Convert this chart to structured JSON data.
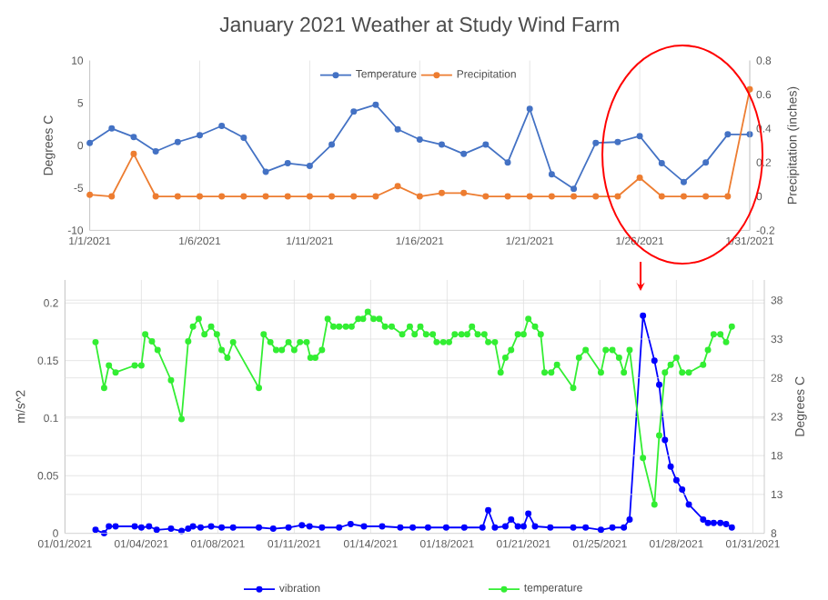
{
  "chart_data": [
    {
      "type": "line",
      "title": "January 2021 Weather at Study Wind Farm",
      "ylabel": "Degrees C",
      "y2label": "Precipitation (inches)",
      "x": [
        "2021-01-01",
        "2021-01-02",
        "2021-01-03",
        "2021-01-04",
        "2021-01-05",
        "2021-01-06",
        "2021-01-07",
        "2021-01-08",
        "2021-01-09",
        "2021-01-10",
        "2021-01-11",
        "2021-01-12",
        "2021-01-13",
        "2021-01-14",
        "2021-01-15",
        "2021-01-16",
        "2021-01-17",
        "2021-01-18",
        "2021-01-19",
        "2021-01-20",
        "2021-01-21",
        "2021-01-22",
        "2021-01-23",
        "2021-01-24",
        "2021-01-25",
        "2021-01-26",
        "2021-01-27",
        "2021-01-28",
        "2021-01-29",
        "2021-01-30",
        "2021-01-31"
      ],
      "series": [
        {
          "name": "Temperature",
          "color": "#4472c4",
          "values": [
            0.3,
            2.0,
            1.0,
            -0.7,
            0.4,
            1.2,
            2.3,
            0.9,
            -3.1,
            -2.1,
            -2.4,
            0.1,
            4.0,
            4.8,
            1.9,
            0.7,
            0.1,
            -1.0,
            0.1,
            -2.0,
            4.3,
            -3.4,
            -5.1,
            0.3,
            0.4,
            1.1,
            -2.1,
            -4.3,
            -2.0,
            1.3,
            1.3
          ]
        },
        {
          "name": "Precipitation",
          "color": "#ed7d31",
          "axis": "y2",
          "values": [
            0.01,
            0,
            0.25,
            0,
            0,
            0,
            0,
            0,
            0,
            0,
            0,
            0,
            0,
            0,
            0.06,
            0,
            0.02,
            0.02,
            0,
            0,
            0,
            0,
            0,
            0,
            0,
            0.11,
            0,
            0,
            0,
            0,
            0.63
          ]
        }
      ],
      "xlim": [
        "2021-01-01",
        "2021-01-31"
      ],
      "xticks": [
        {
          "value": "2021-01-01",
          "label": "1/1/2021"
        },
        {
          "value": "2021-01-06",
          "label": "1/6/2021"
        },
        {
          "value": "2021-01-11",
          "label": "1/11/2021"
        },
        {
          "value": "2021-01-16",
          "label": "1/16/2021"
        },
        {
          "value": "2021-01-21",
          "label": "1/21/2021"
        },
        {
          "value": "2021-01-26",
          "label": "1/26/2021"
        },
        {
          "value": "2021-01-31",
          "label": "1/31/2021"
        }
      ],
      "ylim": [
        -10,
        10
      ],
      "yticks": [
        -10,
        -5,
        0,
        5,
        10
      ],
      "y2lim": [
        -0.2,
        0.8
      ],
      "y2ticks": [
        -0.2,
        0,
        0.2,
        0.4,
        0.6,
        0.8
      ],
      "grid": "x",
      "legend": "top",
      "marker": "circle",
      "line_style": "solid"
    },
    {
      "type": "line",
      "ylabel": "m/s^2",
      "y2label": "Degrees C",
      "series": [
        {
          "name": "vibration",
          "color": "#0000ff",
          "x": [
            "2021-01-02T08:00",
            "2021-01-02T17:00",
            "2021-01-02T22:00",
            "2021-01-03T05:00",
            "2021-01-04T01:00",
            "2021-01-04T08:00",
            "2021-01-04T16:00",
            "2021-01-05T00:00",
            "2021-01-05T15:00",
            "2021-01-06T02:00",
            "2021-01-06T09:00",
            "2021-01-06T14:00",
            "2021-01-06T22:00",
            "2021-01-07T09:00",
            "2021-01-07T20:00",
            "2021-01-08T08:00",
            "2021-01-09T11:00",
            "2021-01-10T02:00",
            "2021-01-10T18:00",
            "2021-01-11T08:00",
            "2021-01-11T16:00",
            "2021-01-12T05:00",
            "2021-01-12T23:00",
            "2021-01-13T11:00",
            "2021-01-14T01:00",
            "2021-01-14T20:00",
            "2021-01-15T15:00",
            "2021-01-16T04:00",
            "2021-01-16T20:00",
            "2021-01-17T15:00",
            "2021-01-18T10:00",
            "2021-01-19T05:00",
            "2021-01-19T11:00",
            "2021-01-19T18:00",
            "2021-01-20T05:00",
            "2021-01-20T11:00",
            "2021-01-20T18:00",
            "2021-01-21T00:00",
            "2021-01-21T05:00",
            "2021-01-21T12:00",
            "2021-01-22T04:00",
            "2021-01-23T04:00",
            "2021-01-23T17:00",
            "2021-01-24T09:00",
            "2021-01-24T21:00",
            "2021-01-25T09:00",
            "2021-01-25T15:00",
            "2021-01-26T05:00",
            "2021-01-26T17:00",
            "2021-01-26T22:00",
            "2021-01-27T04:00",
            "2021-01-27T10:00",
            "2021-01-27T16:00",
            "2021-01-27T22:00",
            "2021-01-28T05:00",
            "2021-01-28T20:00",
            "2021-01-29T01:00",
            "2021-01-29T07:00",
            "2021-01-29T14:00",
            "2021-01-29T20:00",
            "2021-01-30T02:00"
          ],
          "values": [
            0.003,
            0.0,
            0.006,
            0.006,
            0.006,
            0.005,
            0.006,
            0.003,
            0.004,
            0.002,
            0.004,
            0.006,
            0.005,
            0.006,
            0.005,
            0.005,
            0.005,
            0.004,
            0.005,
            0.007,
            0.006,
            0.005,
            0.005,
            0.008,
            0.006,
            0.006,
            0.005,
            0.005,
            0.005,
            0.005,
            0.005,
            0.005,
            0.02,
            0.005,
            0.006,
            0.012,
            0.006,
            0.006,
            0.017,
            0.006,
            0.005,
            0.005,
            0.005,
            0.003,
            0.005,
            0.005,
            0.012,
            0.189,
            0.15,
            0.129,
            0.081,
            0.058,
            0.046,
            0.038,
            0.025,
            0.012,
            0.009,
            0.009,
            0.009,
            0.008,
            0.005
          ]
        },
        {
          "name": "temperature",
          "color": "#33ee33",
          "axis": "y2",
          "x": [
            "2021-01-02T08:00",
            "2021-01-02T17:00",
            "2021-01-02T22:00",
            "2021-01-03T05:00",
            "2021-01-04T01:00",
            "2021-01-04T08:00",
            "2021-01-04T12:00",
            "2021-01-04T19:00",
            "2021-01-05T01:00",
            "2021-01-05T15:00",
            "2021-01-06T02:00",
            "2021-01-06T09:00",
            "2021-01-06T14:00",
            "2021-01-06T20:00",
            "2021-01-07T02:00",
            "2021-01-07T09:00",
            "2021-01-07T15:00",
            "2021-01-07T20:00",
            "2021-01-08T02:00",
            "2021-01-08T08:00",
            "2021-01-09T11:00",
            "2021-01-09T16:00",
            "2021-01-09T23:00",
            "2021-01-10T05:00",
            "2021-01-10T11:00",
            "2021-01-10T18:00",
            "2021-01-11T00:00",
            "2021-01-11T06:00",
            "2021-01-11T13:00",
            "2021-01-11T17:00",
            "2021-01-11T22:00",
            "2021-01-12T05:00",
            "2021-01-12T11:00",
            "2021-01-12T17:00",
            "2021-01-12T23:00",
            "2021-01-13T06:00",
            "2021-01-13T12:00",
            "2021-01-13T19:00",
            "2021-01-14T00:00",
            "2021-01-14T05:00",
            "2021-01-14T11:00",
            "2021-01-14T17:00",
            "2021-01-14T23:00",
            "2021-01-15T06:00",
            "2021-01-15T17:00",
            "2021-01-16T01:00",
            "2021-01-16T06:00",
            "2021-01-16T12:00",
            "2021-01-16T18:00",
            "2021-01-17T01:00",
            "2021-01-17T05:00",
            "2021-01-17T12:00",
            "2021-01-17T18:00",
            "2021-01-18T00:00",
            "2021-01-18T07:00",
            "2021-01-18T13:00",
            "2021-01-18T18:00",
            "2021-01-19T00:00",
            "2021-01-19T07:00",
            "2021-01-19T11:00",
            "2021-01-19T18:00",
            "2021-01-20T00:00",
            "2021-01-20T05:00",
            "2021-01-20T11:00",
            "2021-01-20T18:00",
            "2021-01-21T00:00",
            "2021-01-21T05:00",
            "2021-01-21T12:00",
            "2021-01-21T18:00",
            "2021-01-21T22:00",
            "2021-01-22T05:00",
            "2021-01-22T11:00",
            "2021-01-23T04:00",
            "2021-01-23T10:00",
            "2021-01-23T17:00",
            "2021-01-24T09:00",
            "2021-01-24T14:00",
            "2021-01-24T21:00",
            "2021-01-25T04:00",
            "2021-01-25T09:00",
            "2021-01-25T15:00",
            "2021-01-26T05:00",
            "2021-01-26T17:00",
            "2021-01-26T22:00",
            "2021-01-27T04:00",
            "2021-01-27T10:00",
            "2021-01-27T16:00",
            "2021-01-27T22:00",
            "2021-01-28T05:00",
            "2021-01-28T20:00",
            "2021-01-29T01:00",
            "2021-01-29T07:00",
            "2021-01-29T14:00",
            "2021-01-29T20:00",
            "2021-01-30T02:00"
          ],
          "values": [
            32.6,
            26.7,
            29.6,
            28.7,
            29.6,
            29.6,
            33.6,
            32.7,
            31.6,
            27.7,
            22.7,
            32.7,
            34.6,
            35.6,
            33.6,
            34.6,
            33.6,
            31.6,
            30.6,
            32.6,
            26.7,
            33.6,
            32.6,
            31.6,
            31.6,
            32.6,
            31.6,
            32.6,
            32.6,
            30.6,
            30.6,
            31.6,
            35.6,
            34.6,
            34.6,
            34.6,
            34.6,
            35.6,
            35.6,
            36.5,
            35.6,
            35.6,
            34.6,
            34.6,
            33.6,
            34.6,
            33.6,
            34.6,
            33.6,
            33.6,
            32.6,
            32.6,
            32.6,
            33.6,
            33.6,
            33.6,
            34.6,
            33.6,
            33.6,
            32.6,
            32.6,
            28.7,
            30.6,
            31.6,
            33.6,
            33.6,
            35.6,
            34.6,
            33.6,
            28.7,
            28.7,
            29.7,
            26.7,
            30.6,
            31.6,
            28.7,
            31.6,
            31.6,
            30.6,
            28.7,
            31.6,
            17.7,
            11.7,
            20.6,
            28.7,
            29.7,
            30.6,
            28.7,
            28.7,
            29.7,
            31.6,
            33.6,
            33.6,
            32.6,
            34.6
          ]
        }
      ],
      "xlim": [
        "2021-01-01T00:00",
        "2021-01-31T12:00"
      ],
      "xticks": [
        {
          "value": "2021-01-01T00:00",
          "label": "01/01/2021"
        },
        {
          "value": "2021-01-04T08:00",
          "label": "01/04/2021"
        },
        {
          "value": "2021-01-07T16:00",
          "label": "01/08/2021"
        },
        {
          "value": "2021-01-11T00:00",
          "label": "01/11/2021"
        },
        {
          "value": "2021-01-14T08:00",
          "label": "01/14/2021"
        },
        {
          "value": "2021-01-17T16:00",
          "label": "01/18/2021"
        },
        {
          "value": "2021-01-21T00:00",
          "label": "01/21/2021"
        },
        {
          "value": "2021-01-24T08:00",
          "label": "01/25/2021"
        },
        {
          "value": "2021-01-27T16:00",
          "label": "01/28/2021"
        },
        {
          "value": "2021-01-31T00:00",
          "label": "01/31/2021"
        }
      ],
      "ylim": [
        0,
        0.22
      ],
      "yticks": [
        0,
        0.05,
        0.1,
        0.15,
        0.2
      ],
      "y2lim": [
        8,
        40.6
      ],
      "y2ticks": [
        8,
        13,
        18,
        23,
        28,
        33,
        38
      ],
      "grid": true,
      "legend": "bottom",
      "marker": "circle",
      "line_style": "solid"
    }
  ]
}
